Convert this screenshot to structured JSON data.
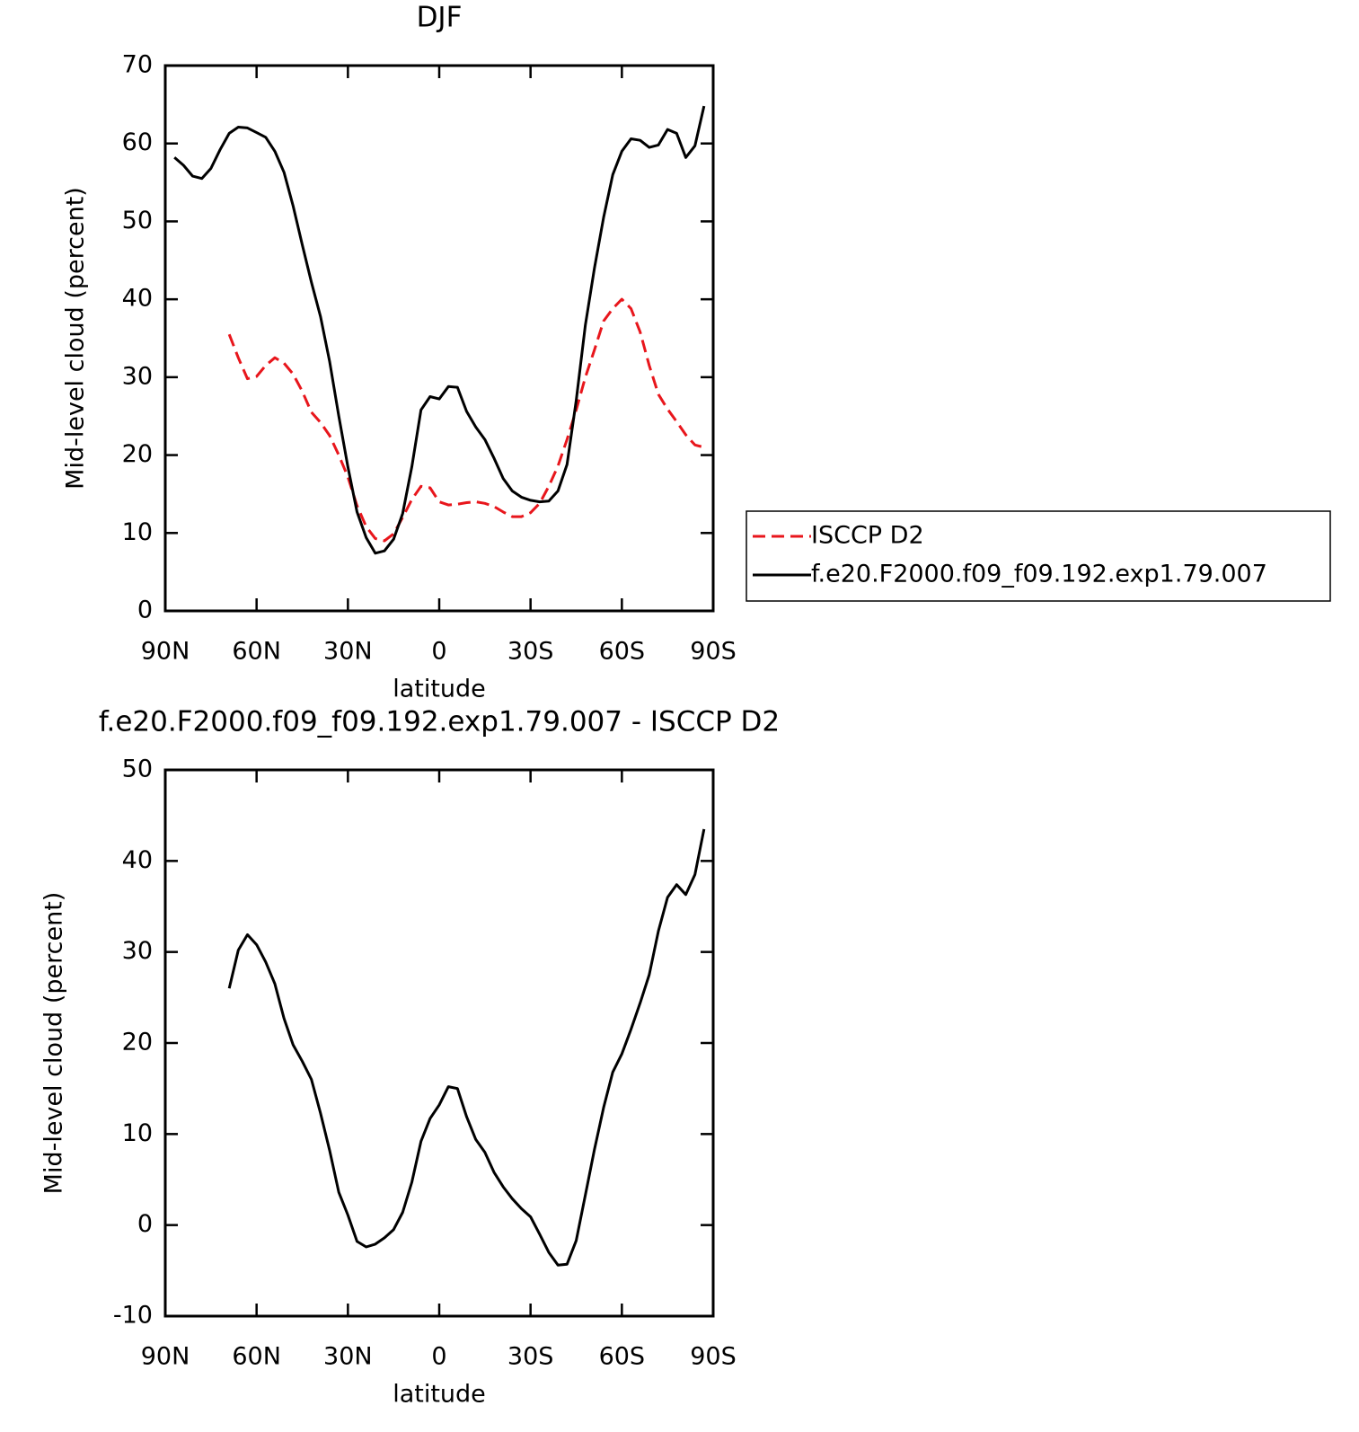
{
  "chart_data": [
    {
      "type": "line",
      "title": "DJF",
      "xlabel": "latitude",
      "ylabel": "Mid-level cloud (percent)",
      "x": [
        87,
        84,
        81,
        78,
        75,
        72,
        69,
        66,
        63,
        60,
        57,
        54,
        51,
        48,
        45,
        42,
        39,
        36,
        33,
        30,
        27,
        24,
        21,
        18,
        15,
        12,
        9,
        6,
        3,
        0,
        -3,
        -6,
        -9,
        -12,
        -15,
        -18,
        -21,
        -24,
        -27,
        -30,
        -33,
        -36,
        -39,
        -42,
        -45,
        -48,
        -51,
        -54,
        -57,
        -60,
        -63,
        -66,
        -69,
        -72,
        -75,
        -78,
        -81,
        -84,
        -87
      ],
      "series": [
        {
          "name": "ISCCP D2",
          "color": "#e8161c",
          "dashed": true,
          "values": [
            null,
            null,
            null,
            null,
            null,
            null,
            35.5,
            32.5,
            29.8,
            30.1,
            31.5,
            32.5,
            31.8,
            30.4,
            28.2,
            25.5,
            24.2,
            22.5,
            20,
            17.2,
            13.5,
            10.8,
            9.3,
            9,
            9.9,
            12,
            14.3,
            16,
            15.8,
            14,
            13.6,
            13.7,
            13.9,
            14,
            13.8,
            13.4,
            12.7,
            12.1,
            12.1,
            12.6,
            13.8,
            16,
            18.6,
            22,
            25.8,
            30,
            33.5,
            37.2,
            38.8,
            40,
            38.8,
            35.8,
            31.5,
            27.8,
            25.9,
            24.3,
            22.6,
            21.3,
            21
          ]
        },
        {
          "name": "f.e20.F2000.f09_f09.192.exp1.79.007",
          "color": "#000000",
          "dashed": false,
          "values": [
            58.2,
            57.2,
            55.8,
            55.5,
            56.8,
            59.2,
            61.3,
            62.1,
            62,
            61.4,
            60.8,
            59,
            56.3,
            52,
            47,
            42.2,
            37.8,
            32,
            25,
            18.5,
            12.7,
            9.4,
            7.4,
            7.7,
            9.2,
            12.5,
            18.5,
            25.8,
            27.5,
            27.2,
            28.8,
            28.7,
            25.6,
            23.6,
            22,
            19.6,
            17,
            15.4,
            14.6,
            14.2,
            14,
            14.1,
            15.4,
            18.8,
            27,
            36.7,
            44,
            50.5,
            56,
            59,
            60.6,
            60.4,
            59.5,
            59.8,
            61.8,
            61.3,
            58.2,
            59.7,
            64.8
          ]
        }
      ],
      "xlim": [
        90,
        -90
      ],
      "xticks": [
        {
          "value": 90,
          "label": "90N"
        },
        {
          "value": 60,
          "label": "60N"
        },
        {
          "value": 30,
          "label": "30N"
        },
        0,
        {
          "value": -30,
          "label": "30S"
        },
        {
          "value": -60,
          "label": "60S"
        },
        {
          "value": -90,
          "label": "90S"
        }
      ],
      "ylim": [
        0,
        70
      ],
      "yticks": [
        0,
        10,
        20,
        30,
        40,
        50,
        60,
        70
      ],
      "legend": "right"
    },
    {
      "type": "line",
      "title": "f.e20.F2000.f09_f09.192.exp1.79.007 - ISCCP D2",
      "xlabel": "latitude",
      "ylabel": "Mid-level cloud (percent)",
      "x": [
        87,
        84,
        81,
        78,
        75,
        72,
        69,
        66,
        63,
        60,
        57,
        54,
        51,
        48,
        45,
        42,
        39,
        36,
        33,
        30,
        27,
        24,
        21,
        18,
        15,
        12,
        9,
        6,
        3,
        0,
        -3,
        -6,
        -9,
        -12,
        -15,
        -18,
        -21,
        -24,
        -27,
        -30,
        -33,
        -36,
        -39,
        -42,
        -45,
        -48,
        -51,
        -54,
        -57,
        -60,
        -63,
        -66,
        -69,
        -72,
        -75,
        -78,
        -81,
        -84,
        -87
      ],
      "series": [
        {
          "color": "#000000",
          "dashed": false,
          "values": [
            null,
            null,
            null,
            null,
            null,
            null,
            26,
            30.2,
            31.9,
            30.8,
            28.9,
            26.5,
            22.7,
            19.8,
            18,
            16,
            12.3,
            8.2,
            3.6,
            1.1,
            -1.8,
            -2.4,
            -2.1,
            -1.4,
            -0.5,
            1.4,
            4.7,
            9.2,
            11.7,
            13.2,
            15.2,
            15,
            11.9,
            9.4,
            8,
            5.8,
            4.2,
            2.9,
            1.8,
            0.9,
            -1,
            -3,
            -4.4,
            -4.3,
            -1.7,
            3.3,
            8.3,
            12.9,
            16.8,
            18.8,
            21.5,
            24.4,
            27.5,
            32.3,
            36,
            37.4,
            36.3,
            38.5,
            43.5
          ]
        }
      ],
      "xlim": [
        90,
        -90
      ],
      "xticks": [
        {
          "value": 90,
          "label": "90N"
        },
        {
          "value": 60,
          "label": "60N"
        },
        {
          "value": 30,
          "label": "30N"
        },
        0,
        {
          "value": -30,
          "label": "30S"
        },
        {
          "value": -60,
          "label": "60S"
        },
        {
          "value": -90,
          "label": "90S"
        }
      ],
      "ylim": [
        -10,
        50
      ],
      "yticks": [
        -10,
        0,
        10,
        20,
        30,
        40,
        50
      ]
    }
  ]
}
